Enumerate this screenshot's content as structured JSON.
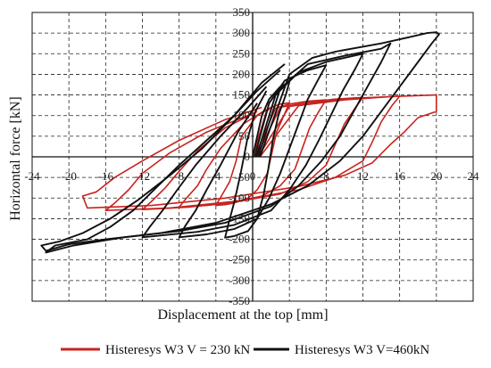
{
  "chart_data": {
    "type": "line",
    "title": "",
    "xlabel": "Displacement at the top [mm]",
    "ylabel": "Horizontal force [kN]",
    "xlim": [
      -24,
      24
    ],
    "ylim": [
      -350,
      350
    ],
    "x_ticks": [
      -24,
      -20,
      -16,
      -12,
      -8,
      -4,
      0,
      4,
      8,
      12,
      16,
      20,
      24
    ],
    "y_ticks": [
      350,
      300,
      250,
      200,
      150,
      100,
      50,
      0,
      -50,
      -100,
      -150,
      -200,
      -250,
      -300,
      -350
    ],
    "grid": true,
    "legend_position": "bottom",
    "series": [
      {
        "name": "Histeresys W3 V = 230 kN",
        "color": "#c8231f",
        "loops": [
          [
            [
              0.0,
              0
            ],
            [
              1.5,
              110
            ],
            [
              2.0,
              120
            ],
            [
              3,
              128
            ],
            [
              4,
              131
            ],
            [
              3.4,
              100
            ],
            [
              2.6,
              60
            ],
            [
              2.1,
              10
            ],
            [
              1.6,
              -40
            ],
            [
              0.5,
              -80
            ],
            [
              -0.5,
              -100
            ],
            [
              -2,
              -112
            ],
            [
              -3,
              -116
            ],
            [
              -4,
              -118
            ],
            [
              -3.4,
              -95
            ],
            [
              -2.5,
              -60
            ],
            [
              -1.8,
              -10
            ],
            [
              -1.2,
              50
            ],
            [
              0.5,
              100
            ],
            [
              2,
              120
            ]
          ],
          [
            [
              0.2,
              0
            ],
            [
              2.5,
              118
            ],
            [
              4,
              128
            ],
            [
              6,
              135
            ],
            [
              8,
              138
            ],
            [
              7.2,
              110
            ],
            [
              6.2,
              70
            ],
            [
              5.4,
              20
            ],
            [
              4.6,
              -30
            ],
            [
              3,
              -70
            ],
            [
              1,
              -95
            ],
            [
              -2,
              -110
            ],
            [
              -5,
              -118
            ],
            [
              -8,
              -122
            ],
            [
              -7.2,
              -100
            ],
            [
              -6,
              -70
            ],
            [
              -5,
              -30
            ],
            [
              -3.5,
              20
            ],
            [
              -1,
              80
            ],
            [
              1.5,
              115
            ]
          ],
          [
            [
              0.4,
              0
            ],
            [
              3,
              120
            ],
            [
              6,
              132
            ],
            [
              9,
              140
            ],
            [
              12,
              144
            ],
            [
              11.2,
              120
            ],
            [
              10,
              80
            ],
            [
              9,
              30
            ],
            [
              8,
              -20
            ],
            [
              6,
              -60
            ],
            [
              3,
              -90
            ],
            [
              -2,
              -110
            ],
            [
              -7,
              -122
            ],
            [
              -12,
              -128
            ],
            [
              -11,
              -108
            ],
            [
              -9.5,
              -75
            ],
            [
              -8,
              -35
            ],
            [
              -6,
              15
            ],
            [
              -3,
              70
            ],
            [
              0.5,
              110
            ]
          ],
          [
            [
              0.6,
              0
            ],
            [
              4,
              122
            ],
            [
              8,
              135
            ],
            [
              12,
              143
            ],
            [
              16,
              147
            ],
            [
              15.2,
              125
            ],
            [
              14,
              85
            ],
            [
              13,
              35
            ],
            [
              12,
              -10
            ],
            [
              9,
              -50
            ],
            [
              5,
              -80
            ],
            [
              -2,
              -108
            ],
            [
              -9,
              -124
            ],
            [
              -16,
              -130
            ],
            [
              -15,
              -112
            ],
            [
              -13.5,
              -80
            ],
            [
              -12,
              -40
            ],
            [
              -9,
              10
            ],
            [
              -5,
              60
            ],
            [
              0,
              105
            ]
          ],
          [
            [
              0.8,
              0
            ],
            [
              5,
              124
            ],
            [
              10,
              138
            ],
            [
              15,
              146
            ],
            [
              20,
              150
            ],
            [
              20,
              110
            ],
            [
              18,
              95
            ],
            [
              16.5,
              60
            ],
            [
              15,
              30
            ],
            [
              13,
              -15
            ],
            [
              10,
              -45
            ],
            [
              5,
              -72
            ],
            [
              -3,
              -100
            ],
            [
              -11,
              -118
            ],
            [
              -18,
              -124
            ],
            [
              -18.5,
              -95
            ],
            [
              -17,
              -85
            ],
            [
              -15,
              -50
            ],
            [
              -12,
              -10
            ],
            [
              -8,
              40
            ],
            [
              -3,
              90
            ],
            [
              1,
              120
            ]
          ]
        ]
      },
      {
        "name": "Histeresys W3 V=460kN",
        "color": "#111111",
        "loops": [
          [
            [
              0.0,
              0
            ],
            [
              1.0,
              100
            ],
            [
              1.8,
              140
            ],
            [
              3,
              170
            ],
            [
              4,
              182
            ],
            [
              3.6,
              150
            ],
            [
              2.8,
              100
            ],
            [
              2.2,
              40
            ],
            [
              1.7,
              -30
            ],
            [
              1.2,
              -90
            ],
            [
              0.5,
              -150
            ],
            [
              -0.5,
              -180
            ],
            [
              -2,
              -192
            ],
            [
              -3,
              -196
            ],
            [
              -2.6,
              -160
            ],
            [
              -2,
              -110
            ],
            [
              -1.3,
              -40
            ],
            [
              -0.6,
              40
            ],
            [
              0.3,
              110
            ],
            [
              1.5,
              160
            ]
          ],
          [
            [
              0.2,
              0
            ],
            [
              1.8,
              130
            ],
            [
              3.5,
              185
            ],
            [
              6,
              210
            ],
            [
              8,
              222
            ],
            [
              7.2,
              190
            ],
            [
              6,
              140
            ],
            [
              5,
              80
            ],
            [
              4,
              20
            ],
            [
              3,
              -40
            ],
            [
              1.8,
              -100
            ],
            [
              0.5,
              -150
            ],
            [
              -2,
              -175
            ],
            [
              -5,
              -188
            ],
            [
              -8,
              -195
            ],
            [
              -7.4,
              -170
            ],
            [
              -6.2,
              -130
            ],
            [
              -5,
              -80
            ],
            [
              -3.5,
              -20
            ],
            [
              -1.6,
              60
            ],
            [
              0.5,
              130
            ]
          ],
          [
            [
              0.4,
              0
            ],
            [
              2.5,
              150
            ],
            [
              5,
              205
            ],
            [
              8,
              230
            ],
            [
              12,
              250
            ],
            [
              11.2,
              215
            ],
            [
              9.8,
              160
            ],
            [
              8.5,
              100
            ],
            [
              7.2,
              40
            ],
            [
              5.8,
              -20
            ],
            [
              4,
              -80
            ],
            [
              2,
              -130
            ],
            [
              -2,
              -165
            ],
            [
              -6,
              -182
            ],
            [
              -12,
              -195
            ],
            [
              -11.2,
              -170
            ],
            [
              -9.8,
              -130
            ],
            [
              -8.2,
              -80
            ],
            [
              -6.2,
              -20
            ],
            [
              -3.5,
              50
            ],
            [
              -0.5,
              120
            ],
            [
              1.5,
              170
            ]
          ],
          [
            [
              0.6,
              0
            ],
            [
              3,
              165
            ],
            [
              6,
              225
            ],
            [
              10,
              245
            ],
            [
              14,
              262
            ],
            [
              15,
              275
            ],
            [
              14,
              230
            ],
            [
              12.5,
              170
            ],
            [
              11,
              110
            ],
            [
              9.5,
              50
            ],
            [
              7.5,
              -10
            ],
            [
              5,
              -70
            ],
            [
              2,
              -120
            ],
            [
              -3,
              -160
            ],
            [
              -8,
              -180
            ],
            [
              -14,
              -195
            ],
            [
              -19.5,
              -215
            ],
            [
              -22.5,
              -232
            ],
            [
              -21.5,
              -215
            ],
            [
              -18,
              -200
            ],
            [
              -15.5,
              -170
            ],
            [
              -13,
              -130
            ],
            [
              -10.5,
              -75
            ],
            [
              -8,
              -20
            ],
            [
              -5,
              40
            ],
            [
              -2,
              100
            ],
            [
              0.5,
              160
            ],
            [
              3,
              210
            ]
          ],
          [
            [
              0.8,
              0
            ],
            [
              4,
              200
            ],
            [
              6.5,
              240
            ],
            [
              9,
              255
            ],
            [
              14,
              275
            ],
            [
              17,
              290
            ],
            [
              19,
              300
            ],
            [
              20,
              302
            ],
            [
              20.3,
              297
            ],
            [
              19.5,
              275
            ],
            [
              18,
              230
            ],
            [
              16,
              170
            ],
            [
              14,
              110
            ],
            [
              12,
              50
            ],
            [
              9.5,
              -10
            ],
            [
              6,
              -70
            ],
            [
              2,
              -115
            ],
            [
              -4,
              -160
            ],
            [
              -10,
              -185
            ],
            [
              -16,
              -200
            ],
            [
              -20,
              -212
            ],
            [
              -22.5,
              -228
            ],
            [
              -23,
              -215
            ],
            [
              -21,
              -205
            ],
            [
              -18.5,
              -185
            ],
            [
              -15.5,
              -150
            ],
            [
              -12.5,
              -105
            ],
            [
              -9,
              -45
            ],
            [
              -5.5,
              20
            ],
            [
              -2,
              100
            ],
            [
              1,
              180
            ],
            [
              3.5,
              225
            ]
          ]
        ]
      }
    ]
  }
}
